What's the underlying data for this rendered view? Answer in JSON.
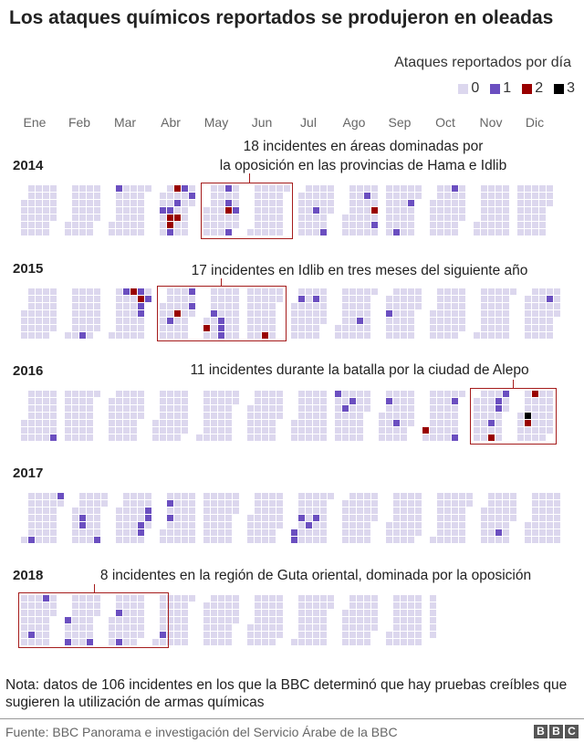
{
  "title": "Los ataques químicos reportados se produjeron en oleadas",
  "legend": {
    "title": "Ataques reportados por día",
    "items": [
      {
        "label": "0",
        "color": "#dcd7ee"
      },
      {
        "label": "1",
        "color": "#6b4fc0"
      },
      {
        "label": "2",
        "color": "#990000"
      },
      {
        "label": "3",
        "color": "#000000"
      }
    ]
  },
  "chart_data": {
    "type": "heatmap",
    "layout": "calendar (weeks as columns, Monday–Sunday as rows)",
    "months": [
      "Ene",
      "Feb",
      "Mar",
      "Abr",
      "May",
      "Jun",
      "Jul",
      "Ago",
      "Sep",
      "Oct",
      "Nov",
      "Dic"
    ],
    "years": [
      "2014",
      "2015",
      "2016",
      "2017",
      "2018"
    ],
    "date_range": [
      "2014-01-01",
      "2018-10-06"
    ],
    "value_label": "Ataques reportados por día",
    "events": [
      {
        "date": "2014-03-03",
        "count": 1
      },
      {
        "date": "2014-04-03",
        "count": 1
      },
      {
        "date": "2014-04-10",
        "count": 1
      },
      {
        "date": "2014-04-11",
        "count": 2
      },
      {
        "date": "2014-04-12",
        "count": 2
      },
      {
        "date": "2014-04-13",
        "count": 1
      },
      {
        "date": "2014-04-14",
        "count": 2
      },
      {
        "date": "2014-04-16",
        "count": 1
      },
      {
        "date": "2014-04-18",
        "count": 2
      },
      {
        "date": "2014-04-21",
        "count": 1
      },
      {
        "date": "2014-04-29",
        "count": 1
      },
      {
        "date": "2014-05-19",
        "count": 1
      },
      {
        "date": "2014-05-21",
        "count": 1
      },
      {
        "date": "2014-05-22",
        "count": 2
      },
      {
        "date": "2014-05-25",
        "count": 1
      },
      {
        "date": "2014-05-29",
        "count": 1
      },
      {
        "date": "2014-07-17",
        "count": 1
      },
      {
        "date": "2014-07-27",
        "count": 1
      },
      {
        "date": "2014-08-19",
        "count": 1
      },
      {
        "date": "2014-08-28",
        "count": 2
      },
      {
        "date": "2014-08-30",
        "count": 1
      },
      {
        "date": "2014-09-14",
        "count": 1
      },
      {
        "date": "2014-09-24",
        "count": 1
      },
      {
        "date": "2014-10-20",
        "count": 1
      },
      {
        "date": "2015-02-15",
        "count": 1
      },
      {
        "date": "2015-03-09",
        "count": 1
      },
      {
        "date": "2015-03-16",
        "count": 2
      },
      {
        "date": "2015-03-23",
        "count": 1
      },
      {
        "date": "2015-03-24",
        "count": 2
      },
      {
        "date": "2015-03-25",
        "count": 1
      },
      {
        "date": "2015-03-26",
        "count": 1
      },
      {
        "date": "2015-03-31",
        "count": 1
      },
      {
        "date": "2015-04-10",
        "count": 1
      },
      {
        "date": "2015-04-16",
        "count": 2
      },
      {
        "date": "2015-04-27",
        "count": 1
      },
      {
        "date": "2015-04-29",
        "count": 1
      },
      {
        "date": "2015-05-02",
        "count": 2
      },
      {
        "date": "2015-05-07",
        "count": 1
      },
      {
        "date": "2015-05-15",
        "count": 1
      },
      {
        "date": "2015-05-16",
        "count": 1
      },
      {
        "date": "2015-05-17",
        "count": 1
      },
      {
        "date": "2015-06-21",
        "count": 2
      },
      {
        "date": "2015-07-07",
        "count": 1
      },
      {
        "date": "2015-07-21",
        "count": 1
      },
      {
        "date": "2015-08-21",
        "count": 1
      },
      {
        "date": "2015-09-03",
        "count": 1
      },
      {
        "date": "2015-12-22",
        "count": 1
      },
      {
        "date": "2016-01-31",
        "count": 1
      },
      {
        "date": "2016-08-01",
        "count": 1
      },
      {
        "date": "2016-08-10",
        "count": 1
      },
      {
        "date": "2016-08-16",
        "count": 1
      },
      {
        "date": "2016-09-06",
        "count": 1
      },
      {
        "date": "2016-09-16",
        "count": 1
      },
      {
        "date": "2016-10-01",
        "count": 2
      },
      {
        "date": "2016-10-25",
        "count": 1
      },
      {
        "date": "2016-10-30",
        "count": 1
      },
      {
        "date": "2016-11-18",
        "count": 1
      },
      {
        "date": "2016-11-20",
        "count": 2
      },
      {
        "date": "2016-11-22",
        "count": 1
      },
      {
        "date": "2016-11-23",
        "count": 1
      },
      {
        "date": "2016-11-28",
        "count": 1
      },
      {
        "date": "2016-12-08",
        "count": 3
      },
      {
        "date": "2016-12-09",
        "count": 2
      },
      {
        "date": "2016-12-12",
        "count": 2
      },
      {
        "date": "2017-01-08",
        "count": 1
      },
      {
        "date": "2017-01-30",
        "count": 1
      },
      {
        "date": "2017-02-09",
        "count": 1
      },
      {
        "date": "2017-02-10",
        "count": 1
      },
      {
        "date": "2017-02-26",
        "count": 1
      },
      {
        "date": "2017-03-24",
        "count": 1
      },
      {
        "date": "2017-03-25",
        "count": 1
      },
      {
        "date": "2017-03-29",
        "count": 1
      },
      {
        "date": "2017-03-30",
        "count": 1
      },
      {
        "date": "2017-04-04",
        "count": 1
      },
      {
        "date": "2017-04-06",
        "count": 1
      },
      {
        "date": "2017-07-01",
        "count": 1
      },
      {
        "date": "2017-07-02",
        "count": 1
      },
      {
        "date": "2017-07-06",
        "count": 1
      },
      {
        "date": "2017-07-14",
        "count": 1
      },
      {
        "date": "2017-07-20",
        "count": 1
      },
      {
        "date": "2017-11-18",
        "count": 1
      },
      {
        "date": "2018-01-13",
        "count": 1
      },
      {
        "date": "2018-01-22",
        "count": 1
      },
      {
        "date": "2018-02-01",
        "count": 1
      },
      {
        "date": "2018-02-04",
        "count": 1
      },
      {
        "date": "2018-02-25",
        "count": 1
      },
      {
        "date": "2018-03-07",
        "count": 1
      },
      {
        "date": "2018-03-11",
        "count": 1
      },
      {
        "date": "2018-04-07",
        "count": 1
      }
    ],
    "annotations": [
      {
        "year": "2014",
        "months": [
          "May",
          "Jun"
        ],
        "text_lines": [
          "18 incidentes en áreas dominadas por",
          "la oposición en las provincias de Hama e Idlib"
        ]
      },
      {
        "year": "2015",
        "months": [
          "Abr",
          "May",
          "Jun"
        ],
        "text_lines": [
          "17 incidentes en Idlib en tres meses del siguiente año"
        ]
      },
      {
        "year": "2016",
        "months": [
          "Nov",
          "Dic"
        ],
        "text_lines": [
          "11 incidentes durante la batalla por la ciudad de Alepo"
        ]
      },
      {
        "year": "2018",
        "months": [
          "Ene",
          "Feb",
          "Mar"
        ],
        "text_lines": [
          "8 incidentes en la región de Guta oriental, dominada por la oposición"
        ]
      }
    ]
  },
  "note": "Nota: datos de 106 incidentes en los que la BBC determinó que hay pruebas creíbles que sugieren la utilización de armas químicas",
  "source": "Fuente: BBC Panorama e investigación del Servicio Árabe de la BBC",
  "logo": "BBC"
}
